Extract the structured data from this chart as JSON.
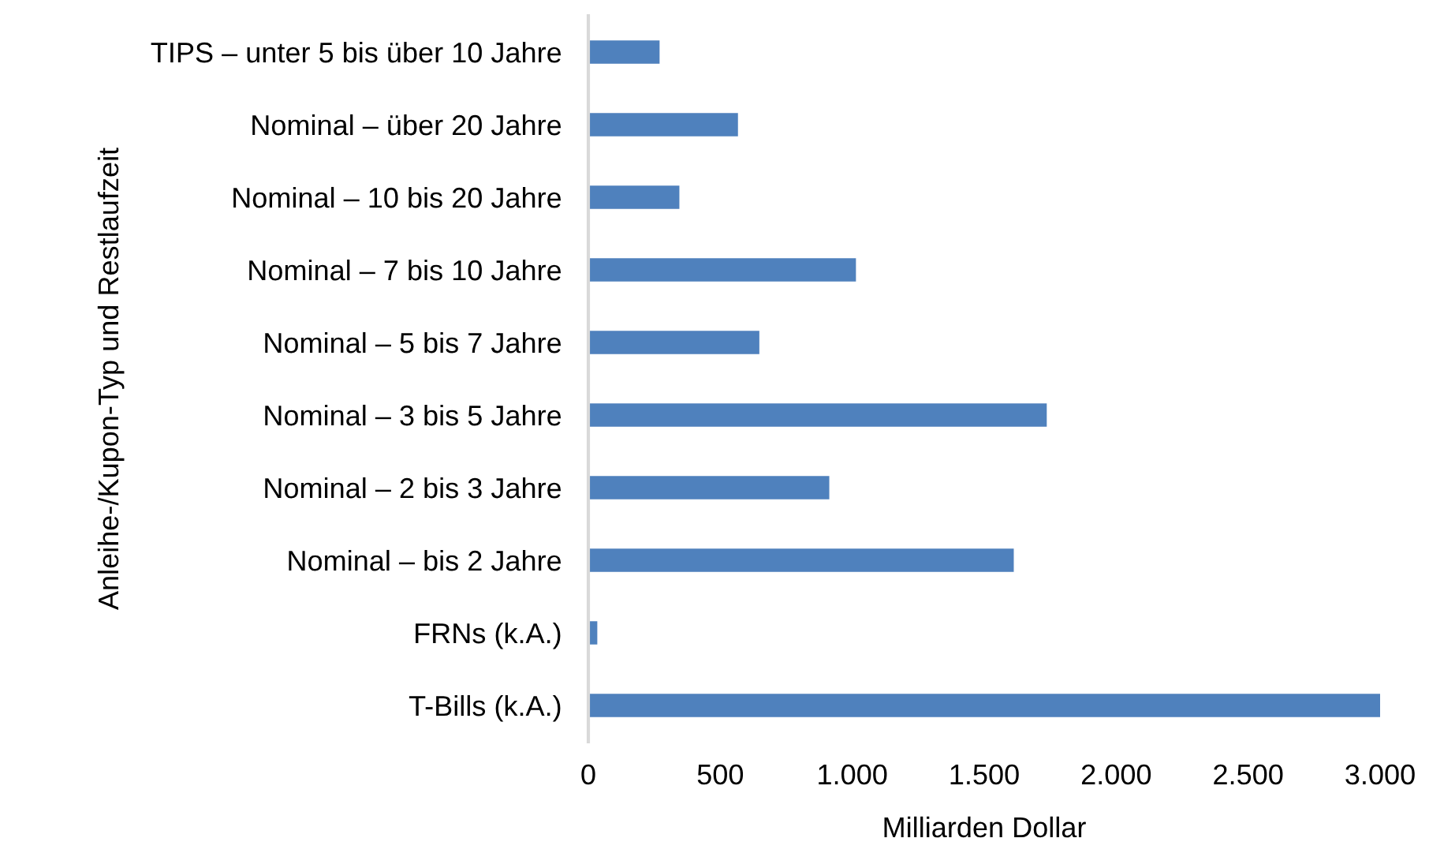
{
  "chart_data": {
    "type": "bar",
    "orientation": "horizontal",
    "xlabel": "Milliarden Dollar",
    "ylabel": "Anleihe-/Kupon-Typ und Restlaufzeit",
    "categories": [
      "TIPS – unter 5 bis über 10 Jahre",
      "Nominal – über 20 Jahre",
      "Nominal – 10 bis 20 Jahre",
      "Nominal – 7 bis 10 Jahre",
      "Nominal – 5 bis 7 Jahre",
      "Nominal – 3 bis 5 Jahre",
      "Nominal – 2 bis 3 Jahre",
      "Nominal – bis 2 Jahre",
      "FRNs (k.A.)",
      "T-Bills (k.A.)"
    ],
    "values": [
      270,
      567,
      345,
      1014,
      648,
      1737,
      913,
      1612,
      34,
      3000
    ],
    "color": "#4f81bd",
    "xlim": [
      0,
      3000
    ],
    "xticks": [
      0,
      500,
      {
        "value": 1000,
        "label": "1.000"
      },
      {
        "value": 1500,
        "label": "1.500"
      },
      {
        "value": 2000,
        "label": "2.000"
      },
      {
        "value": 2500,
        "label": "2.500"
      },
      {
        "value": 3000,
        "label": "3.000"
      }
    ],
    "grid": false,
    "legend": false
  }
}
